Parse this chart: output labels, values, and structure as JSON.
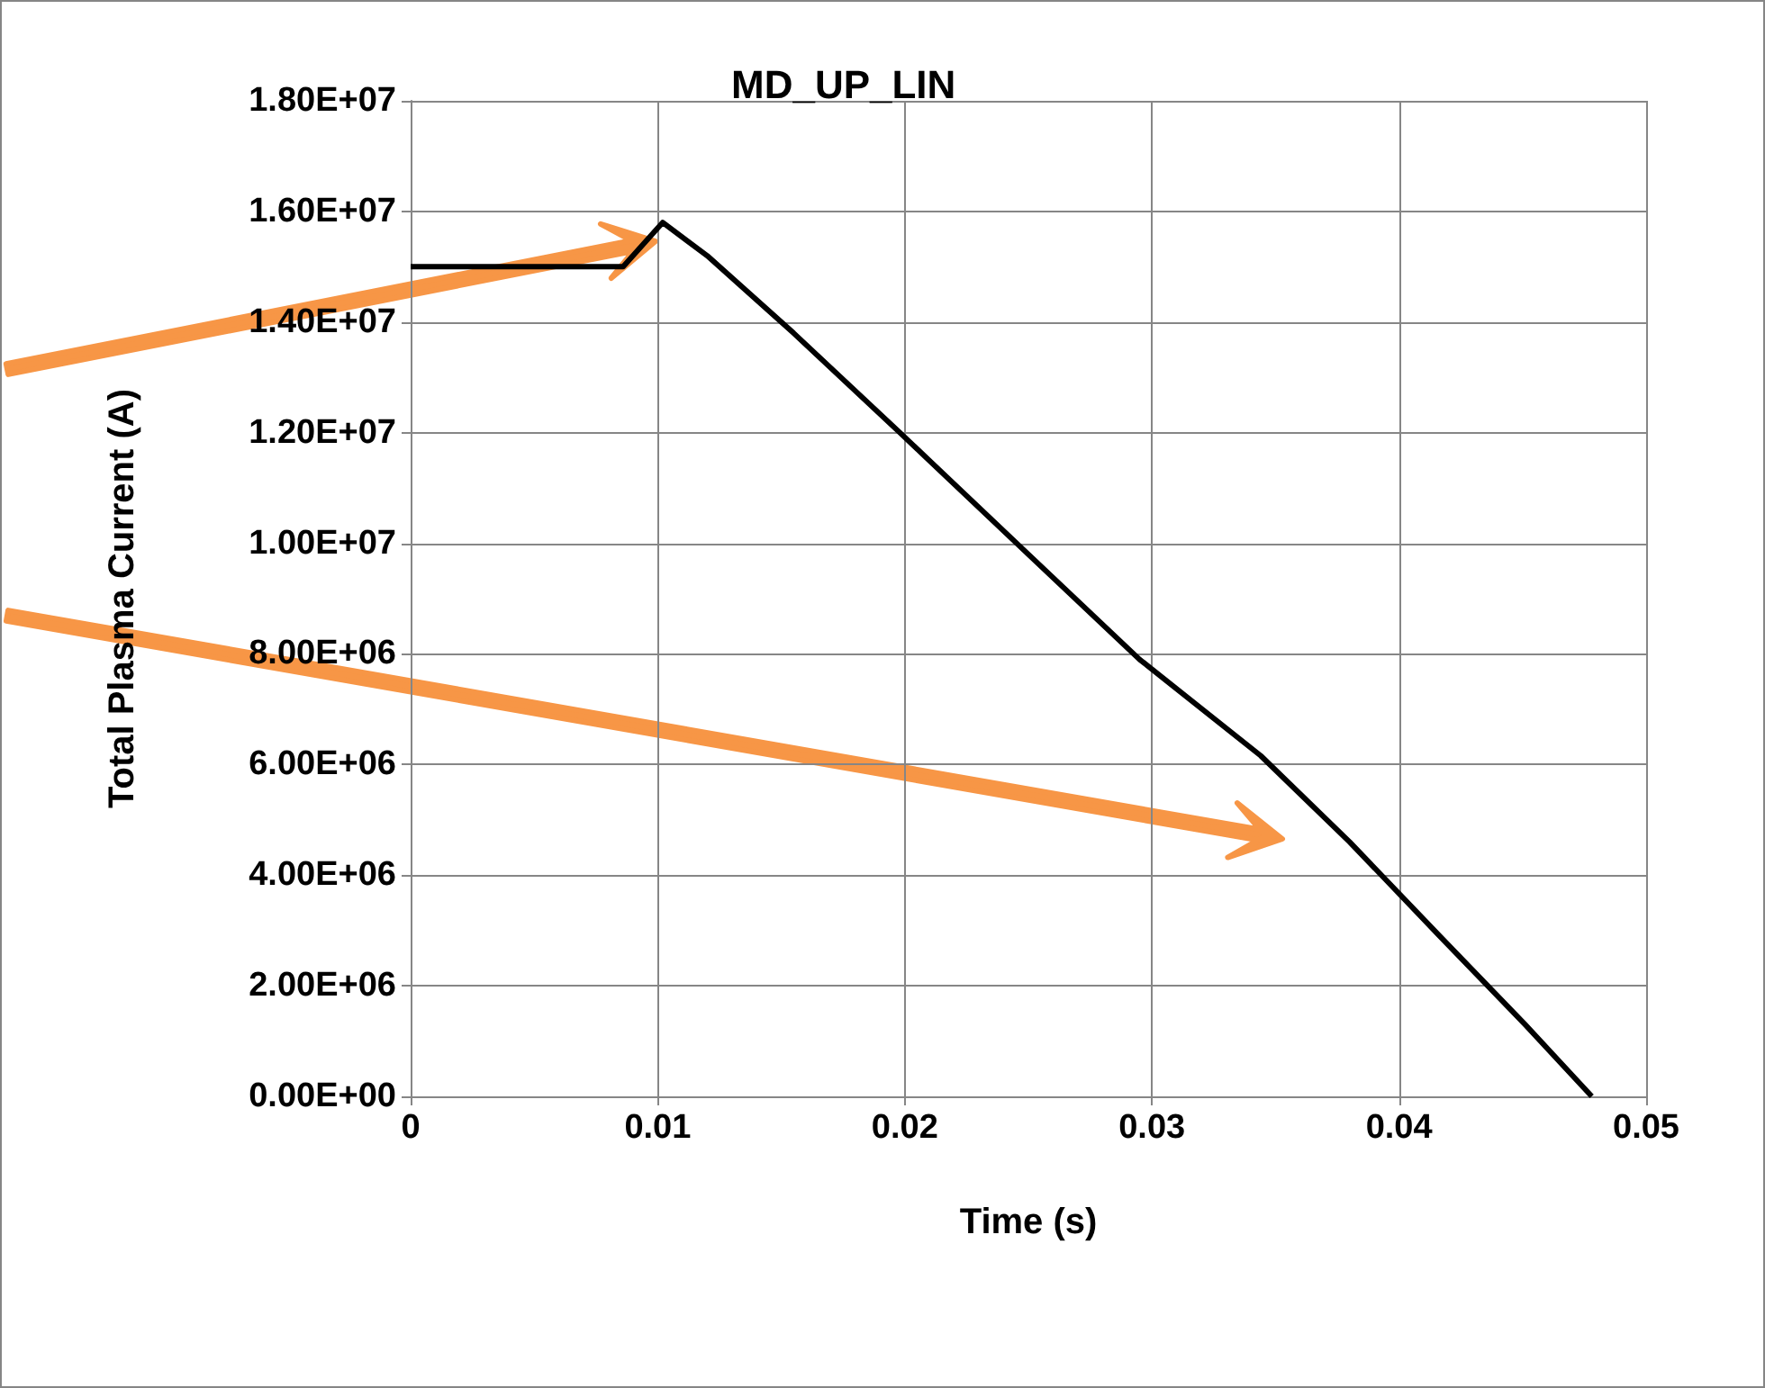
{
  "chart_data": {
    "type": "line",
    "title": "MD_UP_LIN",
    "xlabel": "Time (s)",
    "ylabel": "Total Plasma Current (A)",
    "series": [
      {
        "color": "#000000",
        "x": [
          0,
          0.004,
          0.0086,
          0.0102,
          0.012,
          0.0155,
          0.0198,
          0.025,
          0.0295,
          0.0344,
          0.038,
          0.0416,
          0.0451,
          0.0478
        ],
        "values": [
          15000000,
          15000000,
          15000000,
          15800000,
          15200000,
          13800000,
          12000000,
          9800000,
          7900000,
          6160000,
          4600000,
          2920000,
          1300000,
          0
        ]
      }
    ],
    "xlim": [
      0,
      0.05
    ],
    "xticks": [
      0,
      0.01,
      0.02,
      0.03,
      0.04,
      0.05
    ],
    "ylim": [
      0,
      18000000
    ],
    "yticks": [
      {
        "value": 0,
        "label": "0.00E+00"
      },
      {
        "value": 2000000,
        "label": "2.00E+06"
      },
      {
        "value": 4000000,
        "label": "4.00E+06"
      },
      {
        "value": 6000000,
        "label": "6.00E+06"
      },
      {
        "value": 8000000,
        "label": "8.00E+06"
      },
      {
        "value": 10000000,
        "label": "1.00E+07"
      },
      {
        "value": 12000000,
        "label": "1.20E+07"
      },
      {
        "value": 14000000,
        "label": "1.40E+07"
      },
      {
        "value": 16000000,
        "label": "1.60E+07"
      },
      {
        "value": 18000000,
        "label": "1.80E+07"
      }
    ],
    "grid": true,
    "marker": "none",
    "line_style": "solid"
  }
}
